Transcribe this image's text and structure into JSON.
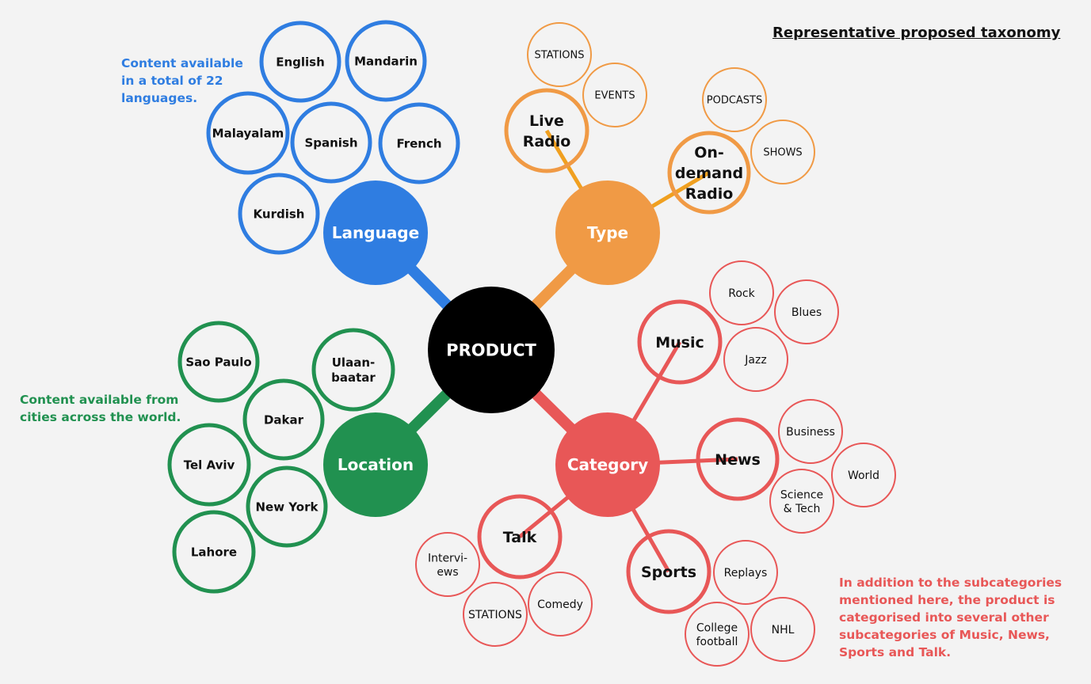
{
  "title": "Representative proposed taxonomy",
  "colors": {
    "background": "#f3f3f3",
    "center": "#000000",
    "language": "#2f7de1",
    "type": "#f09a45",
    "type_line": "#f0a020",
    "location": "#219150",
    "category": "#e85757"
  },
  "notes": {
    "language": "Content available\nin a total of 22\nlanguages.",
    "location": "Content available from\ncities across the world.",
    "category": "In addition to the subcategories\nmentioned here, the product is\ncategorised into several other\nsubcategories of Music, News,\nSports and Talk."
  },
  "center": "PRODUCT",
  "branches": {
    "language": {
      "label": "Language",
      "items": [
        "English",
        "Mandarin",
        "Malayalam",
        "Spanish",
        "French",
        "Kurdish"
      ]
    },
    "type": {
      "label": "Type",
      "live": {
        "label": "Live\nRadio",
        "items": [
          "STATIONS",
          "EVENTS"
        ]
      },
      "ondemand": {
        "label": "On-\ndemand\nRadio",
        "items": [
          "PODCASTS",
          "SHOWS"
        ]
      }
    },
    "location": {
      "label": "Location",
      "items": [
        "Sao Paulo",
        "Ulaan-\nbaatar",
        "Dakar",
        "Tel Aviv",
        "New York",
        "Lahore"
      ]
    },
    "category": {
      "label": "Category",
      "music": {
        "label": "Music",
        "items": [
          "Rock",
          "Blues",
          "Jazz"
        ]
      },
      "news": {
        "label": "News",
        "items": [
          "Business",
          "World",
          "Science\n& Tech"
        ]
      },
      "talk": {
        "label": "Talk",
        "items": [
          "Intervi-\news",
          "STATIONS",
          "Comedy"
        ]
      },
      "sports": {
        "label": "Sports",
        "items": [
          "Replays",
          "College\nfootball",
          "NHL"
        ]
      }
    }
  }
}
